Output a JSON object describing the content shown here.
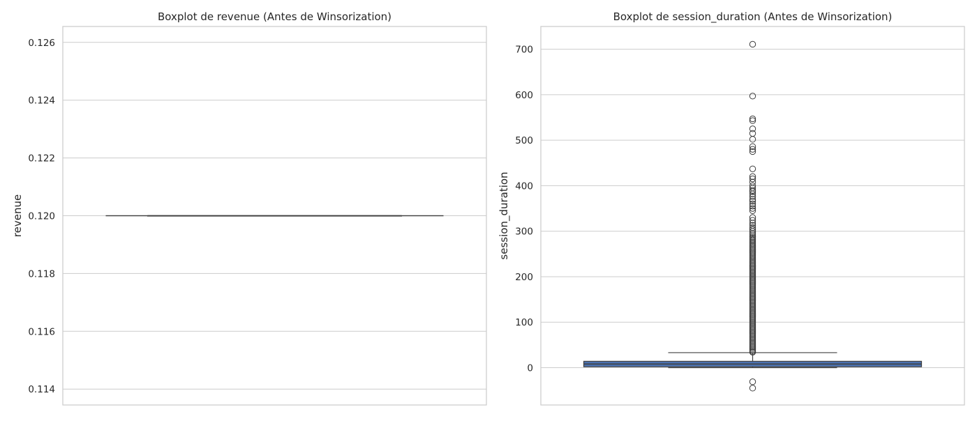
{
  "chart_data": [
    {
      "type": "boxplot",
      "title": "Boxplot de revenue (Antes de Winsorization)",
      "xlabel": "",
      "ylabel": "revenue",
      "ylim": [
        0.11345,
        0.12655
      ],
      "yticks": [
        0.114,
        0.116,
        0.118,
        0.12,
        0.122,
        0.124,
        0.126
      ],
      "ytick_labels": [
        "0.114",
        "0.116",
        "0.118",
        "0.120",
        "0.122",
        "0.124",
        "0.126"
      ],
      "grid": true,
      "box_color": "#4c72b0",
      "line_color": "#404040",
      "box": {
        "whisker_low": 0.12,
        "q1": 0.12,
        "median": 0.12,
        "q3": 0.12,
        "whisker_high": 0.12
      },
      "outliers": []
    },
    {
      "type": "boxplot",
      "title": "Boxplot de session_duration (Antes de Winsorization)",
      "xlabel": "",
      "ylabel": "session_duration",
      "ylim": [
        -82,
        750
      ],
      "yticks": [
        0,
        100,
        200,
        300,
        400,
        500,
        600,
        700
      ],
      "ytick_labels": [
        "0",
        "100",
        "200",
        "300",
        "400",
        "500",
        "600",
        "700"
      ],
      "grid": true,
      "box_color": "#4c72b0",
      "line_color": "#404040",
      "box": {
        "whisker_low": 0,
        "q1": 2,
        "median": 8,
        "q3": 14,
        "whisker_high": 33
      },
      "outliers": [
        711,
        597,
        547,
        543,
        525,
        515,
        502,
        486,
        480,
        475,
        437,
        420,
        415,
        408,
        400,
        395,
        390,
        387,
        382,
        376,
        370,
        366,
        360,
        355,
        350,
        345,
        330,
        324,
        318,
        313,
        308,
        304,
        300,
        296,
        292,
        288,
        285,
        282,
        279,
        276,
        273,
        270,
        267,
        264,
        261,
        258,
        255,
        252,
        249,
        246,
        243,
        240,
        237,
        234,
        231,
        228,
        225,
        222,
        219,
        216,
        213,
        210,
        207,
        204,
        201,
        198,
        195,
        192,
        189,
        186,
        183,
        180,
        177,
        174,
        171,
        168,
        165,
        162,
        159,
        156,
        153,
        150,
        147,
        144,
        141,
        138,
        135,
        132,
        129,
        126,
        123,
        120,
        117,
        114,
        111,
        108,
        105,
        102,
        99,
        96,
        93,
        90,
        87,
        84,
        81,
        78,
        75,
        72,
        69,
        66,
        63,
        60,
        57,
        54,
        51,
        48,
        45,
        42,
        39,
        36,
        34,
        -31,
        -45
      ]
    }
  ]
}
